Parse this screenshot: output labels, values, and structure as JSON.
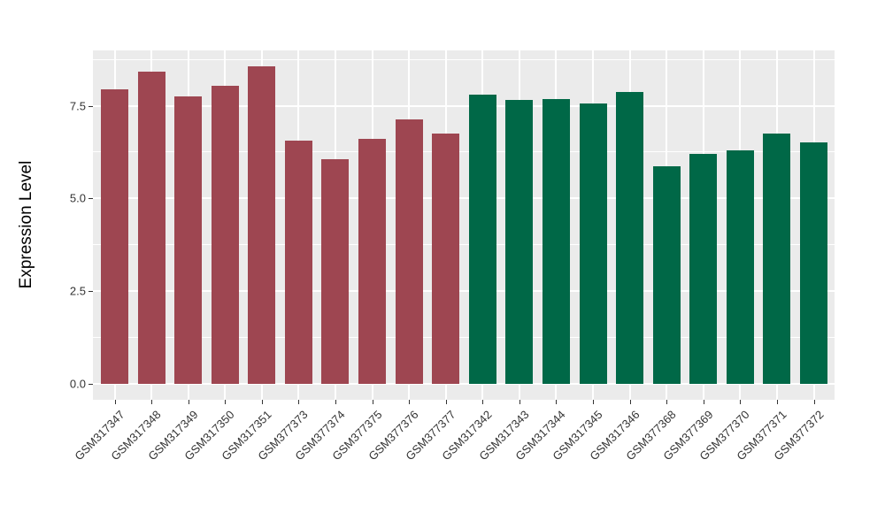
{
  "chart_data": {
    "type": "bar",
    "title": "",
    "ylabel": "Expression Level",
    "xlabel": "",
    "categories": [
      "GSM317347",
      "GSM317348",
      "GSM317349",
      "GSM317350",
      "GSM317351",
      "GSM377373",
      "GSM377374",
      "GSM377375",
      "GSM377376",
      "GSM377377",
      "GSM317342",
      "GSM317343",
      "GSM317344",
      "GSM317345",
      "GSM317346",
      "GSM377368",
      "GSM377369",
      "GSM377370",
      "GSM377371",
      "GSM377372"
    ],
    "values": [
      7.93,
      8.42,
      7.75,
      8.03,
      8.56,
      6.56,
      6.06,
      6.6,
      7.12,
      6.74,
      7.79,
      7.66,
      7.68,
      7.55,
      7.86,
      5.86,
      6.2,
      6.3,
      6.74,
      6.52
    ],
    "bar_colors": [
      "#9E4651",
      "#9E4651",
      "#9E4651",
      "#9E4651",
      "#9E4651",
      "#9E4651",
      "#9E4651",
      "#9E4651",
      "#9E4651",
      "#9E4651",
      "#006847",
      "#006847",
      "#006847",
      "#006847",
      "#006847",
      "#006847",
      "#006847",
      "#006847",
      "#006847",
      "#006847"
    ],
    "ytick_labels": [
      "0.0",
      "2.5",
      "5.0",
      "7.5"
    ],
    "ytick_values": [
      0,
      2.5,
      5.0,
      7.5
    ],
    "yticks_minor": [
      1.25,
      3.75,
      6.25,
      8.75
    ],
    "ylim": [
      -0.45,
      8.98
    ],
    "grid": "on",
    "legend_position": "none",
    "panel_background": "#EBEBEB",
    "grid_color": "#FFFFFF",
    "axis_text_color": "#333333"
  }
}
